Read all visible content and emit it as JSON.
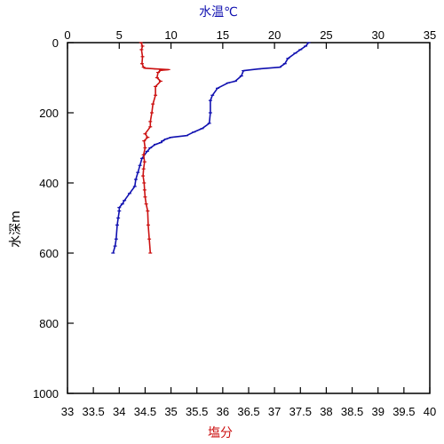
{
  "chart_data": {
    "type": "line",
    "colors": {
      "temperature": "#1010b0",
      "salinity": "#cc1111",
      "axis": "#000000"
    },
    "top_axis": {
      "label": "水温℃",
      "range": [
        0,
        35
      ],
      "ticks": [
        "0",
        "5",
        "10",
        "15",
        "20",
        "25",
        "30",
        "35"
      ]
    },
    "bottom_axis": {
      "label": "塩分",
      "range": [
        33,
        40
      ],
      "ticks": [
        "33",
        "33.5",
        "34",
        "34.5",
        "35",
        "35.5",
        "36",
        "36.5",
        "37",
        "37.5",
        "38",
        "38.5",
        "39",
        "39.5",
        "40"
      ]
    },
    "y_axis": {
      "label": "水深m",
      "range": [
        1000,
        0
      ],
      "inverted": true,
      "ticks": [
        "0",
        "200",
        "400",
        "600",
        "800",
        "1000"
      ]
    },
    "grid": false,
    "series": [
      {
        "axis": "top",
        "color": "#1010b0",
        "points": [
          [
            23.3,
            0
          ],
          [
            23.0,
            10
          ],
          [
            22.5,
            20
          ],
          [
            22.0,
            30
          ],
          [
            21.3,
            45
          ],
          [
            21.0,
            60
          ],
          [
            20.5,
            70
          ],
          [
            18.5,
            75
          ],
          [
            17.0,
            80
          ],
          [
            16.8,
            95
          ],
          [
            16.2,
            110
          ],
          [
            15.5,
            115
          ],
          [
            14.5,
            130
          ],
          [
            14.0,
            150
          ],
          [
            13.8,
            165
          ],
          [
            13.8,
            200
          ],
          [
            13.7,
            230
          ],
          [
            13.0,
            245
          ],
          [
            12.2,
            255
          ],
          [
            11.5,
            265
          ],
          [
            10.0,
            270
          ],
          [
            9.5,
            275
          ],
          [
            9.2,
            280
          ],
          [
            9.0,
            285
          ],
          [
            8.5,
            290
          ],
          [
            8.0,
            300
          ],
          [
            7.7,
            310
          ],
          [
            7.2,
            330
          ],
          [
            7.0,
            350
          ],
          [
            6.8,
            370
          ],
          [
            6.6,
            390
          ],
          [
            6.5,
            410
          ],
          [
            6.0,
            430
          ],
          [
            5.5,
            450
          ],
          [
            5.3,
            460
          ],
          [
            5.0,
            470
          ],
          [
            5.0,
            480
          ],
          [
            4.9,
            500
          ],
          [
            4.8,
            520
          ],
          [
            4.7,
            560
          ],
          [
            4.6,
            580
          ],
          [
            4.4,
            600
          ]
        ]
      },
      {
        "axis": "bottom",
        "color": "#cc1111",
        "points": [
          [
            34.42,
            0
          ],
          [
            34.45,
            10
          ],
          [
            34.43,
            20
          ],
          [
            34.45,
            40
          ],
          [
            34.44,
            60
          ],
          [
            34.47,
            70
          ],
          [
            34.5,
            73
          ],
          [
            34.7,
            75
          ],
          [
            34.95,
            77
          ],
          [
            34.8,
            79
          ],
          [
            34.75,
            85
          ],
          [
            34.73,
            100
          ],
          [
            34.8,
            110
          ],
          [
            34.7,
            125
          ],
          [
            34.7,
            150
          ],
          [
            34.65,
            175
          ],
          [
            34.63,
            200
          ],
          [
            34.6,
            225
          ],
          [
            34.6,
            240
          ],
          [
            34.5,
            260
          ],
          [
            34.55,
            270
          ],
          [
            34.48,
            280
          ],
          [
            34.5,
            300
          ],
          [
            34.47,
            320
          ],
          [
            34.49,
            340
          ],
          [
            34.47,
            360
          ],
          [
            34.46,
            380
          ],
          [
            34.48,
            400
          ],
          [
            34.49,
            420
          ],
          [
            34.5,
            440
          ],
          [
            34.52,
            460
          ],
          [
            34.55,
            480
          ],
          [
            34.56,
            520
          ],
          [
            34.58,
            560
          ],
          [
            34.6,
            600
          ]
        ]
      }
    ]
  }
}
